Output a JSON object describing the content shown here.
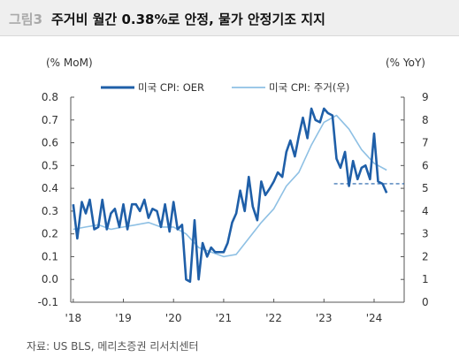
{
  "figure": {
    "number": "그림3",
    "title": "주거비 월간 0.38%로 안정, 물가 안정기조 지지",
    "source": "자료: US BLS, 메리츠증권 리서치센터"
  },
  "colors": {
    "oer": "#1f5fa8",
    "shelter": "#8ec0e4",
    "trend": "#1f5fa8",
    "header_bg": "#efefef"
  },
  "chart_data": {
    "type": "line",
    "left_unit": "(% MoM)",
    "right_unit": "(% YoY)",
    "x_ticks": [
      "'18",
      "'19",
      "'20",
      "'21",
      "'22",
      "'23",
      "'24"
    ],
    "x_tick_values": [
      2018,
      2019,
      2020,
      2021,
      2022,
      2023,
      2024
    ],
    "xlim": [
      2017.95,
      2024.6
    ],
    "y_left_ticks": [
      "-0.1",
      "0.0",
      "0.1",
      "0.2",
      "0.3",
      "0.4",
      "0.5",
      "0.6",
      "0.7",
      "0.8"
    ],
    "y_left_tick_values": [
      -0.1,
      0.0,
      0.1,
      0.2,
      0.3,
      0.4,
      0.5,
      0.6,
      0.7,
      0.8
    ],
    "ylim_left": [
      -0.1,
      0.8
    ],
    "y_right_ticks": [
      "0",
      "1",
      "2",
      "3",
      "4",
      "5",
      "6",
      "7",
      "8",
      "9"
    ],
    "y_right_tick_values": [
      0,
      1,
      2,
      3,
      4,
      5,
      6,
      7,
      8,
      9
    ],
    "ylim_right": [
      0,
      9
    ],
    "legend_position": "top",
    "series": [
      {
        "name": "미국 CPI: OER",
        "axis": "left",
        "x": [
          2018.0,
          2018.08,
          2018.17,
          2018.25,
          2018.33,
          2018.42,
          2018.5,
          2018.58,
          2018.67,
          2018.75,
          2018.83,
          2018.92,
          2019.0,
          2019.08,
          2019.17,
          2019.25,
          2019.33,
          2019.42,
          2019.5,
          2019.58,
          2019.67,
          2019.75,
          2019.83,
          2019.92,
          2020.0,
          2020.08,
          2020.17,
          2020.25,
          2020.33,
          2020.42,
          2020.5,
          2020.58,
          2020.67,
          2020.75,
          2020.83,
          2020.92,
          2021.0,
          2021.08,
          2021.17,
          2021.25,
          2021.33,
          2021.42,
          2021.5,
          2021.58,
          2021.67,
          2021.75,
          2021.83,
          2021.92,
          2022.0,
          2022.08,
          2022.17,
          2022.25,
          2022.33,
          2022.42,
          2022.5,
          2022.58,
          2022.67,
          2022.75,
          2022.83,
          2022.92,
          2023.0,
          2023.08,
          2023.17,
          2023.25,
          2023.33,
          2023.42,
          2023.5,
          2023.58,
          2023.67,
          2023.75,
          2023.83,
          2023.92,
          2024.0,
          2024.08,
          2024.17,
          2024.25
        ],
        "y": [
          0.33,
          0.18,
          0.34,
          0.29,
          0.35,
          0.22,
          0.23,
          0.35,
          0.22,
          0.29,
          0.31,
          0.23,
          0.33,
          0.22,
          0.33,
          0.33,
          0.3,
          0.35,
          0.27,
          0.31,
          0.3,
          0.23,
          0.33,
          0.21,
          0.34,
          0.22,
          0.24,
          0.0,
          -0.01,
          0.26,
          0.0,
          0.16,
          0.1,
          0.14,
          0.12,
          0.12,
          0.12,
          0.16,
          0.25,
          0.29,
          0.39,
          0.3,
          0.45,
          0.32,
          0.26,
          0.43,
          0.37,
          0.4,
          0.43,
          0.47,
          0.45,
          0.56,
          0.61,
          0.54,
          0.63,
          0.71,
          0.62,
          0.75,
          0.7,
          0.69,
          0.75,
          0.73,
          0.72,
          0.53,
          0.49,
          0.56,
          0.41,
          0.52,
          0.44,
          0.49,
          0.5,
          0.44,
          0.64,
          0.43,
          0.42,
          0.38
        ]
      },
      {
        "name": "미국 CPI: 주거(우)",
        "axis": "right",
        "x": [
          2018.0,
          2018.25,
          2018.5,
          2018.75,
          2019.0,
          2019.25,
          2019.5,
          2019.75,
          2020.0,
          2020.25,
          2020.5,
          2020.75,
          2021.0,
          2021.25,
          2021.5,
          2021.75,
          2022.0,
          2022.25,
          2022.5,
          2022.75,
          2023.0,
          2023.25,
          2023.5,
          2023.75,
          2024.0,
          2024.25
        ],
        "y": [
          3.2,
          3.3,
          3.4,
          3.2,
          3.3,
          3.4,
          3.5,
          3.3,
          3.3,
          3.0,
          2.4,
          2.2,
          2.0,
          2.1,
          2.8,
          3.5,
          4.1,
          5.1,
          5.7,
          6.9,
          7.9,
          8.2,
          7.6,
          6.7,
          6.1,
          5.8
        ]
      }
    ],
    "trend_line": {
      "axis": "left",
      "from_x": 2023.2,
      "to_x": 2024.6,
      "y": 0.42,
      "style": "dashed"
    }
  }
}
